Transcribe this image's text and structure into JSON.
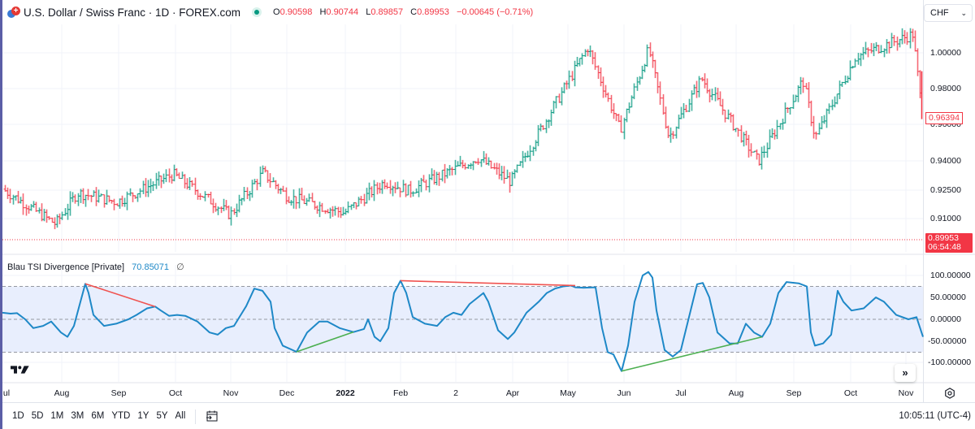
{
  "header": {
    "symbol_title": "U.S. Dollar / Swiss Franc · 1D · FOREX.com",
    "status": "market-open",
    "ohlc": {
      "o_label": "O",
      "o": "0.90598",
      "h_label": "H",
      "h": "0.90744",
      "l_label": "L",
      "l": "0.89857",
      "c_label": "C",
      "c": "0.89953",
      "change": "−0.00645 (−0.71%)"
    },
    "currency": "CHF"
  },
  "price_axis": {
    "labels": [
      "1.00000",
      "0.98000",
      "0.96000",
      "0.94000",
      "0.92500",
      "0.91000"
    ],
    "current_tag": "0.96394",
    "last_price": "0.89953",
    "countdown": "06:54:48"
  },
  "indicator": {
    "name": "Blau TSI Divergence [Private]",
    "value": "70.85071",
    "hide_icon": "∅",
    "axis_labels": [
      "100.00000",
      "50.00000",
      "0.00000",
      "-50.00000",
      "-100.00000"
    ]
  },
  "time_axis": {
    "labels": [
      "ul",
      "Aug",
      "Sep",
      "Oct",
      "Nov",
      "Dec",
      "2022",
      "Feb",
      "2",
      "Apr",
      "May",
      "Jun",
      "Jul",
      "Aug",
      "Sep",
      "Oct",
      "Nov"
    ]
  },
  "bottom_bar": {
    "ranges": [
      "1D",
      "5D",
      "1M",
      "3M",
      "6M",
      "YTD",
      "1Y",
      "5Y",
      "All"
    ],
    "clock": "10:05:11 (UTC-4)"
  },
  "icons": {
    "scroll_right": "»"
  },
  "colors": {
    "up": "#089981",
    "down": "#f23645",
    "tsi_line": "#1e88c7",
    "band_fill": "#e8eefd",
    "bear_div": "#f05350",
    "bull_div": "#4caf50"
  },
  "chart_data": [
    {
      "type": "ohlc",
      "title": "U.S. Dollar / Swiss Franc · 1D · FOREX.com",
      "x_range": [
        "Jul 2021",
        "Nov 2022"
      ],
      "ylabel": "CHF",
      "ylim": [
        0.893,
        1.012
      ],
      "y_ticks": [
        0.91,
        0.925,
        0.94,
        0.96,
        0.98,
        1.0
      ],
      "approx_path": [
        {
          "date": "Jul 2021",
          "close": 0.926
        },
        {
          "date": "Aug 2021",
          "close": 0.907
        },
        {
          "date": "Aug 2021 (mid)",
          "close": 0.924
        },
        {
          "date": "Sep 2021",
          "close": 0.919
        },
        {
          "date": "Oct 2021",
          "close": 0.934
        },
        {
          "date": "Nov 2021",
          "close": 0.912
        },
        {
          "date": "Nov 2021 (late)",
          "close": 0.935
        },
        {
          "date": "Dec 2021",
          "close": 0.922
        },
        {
          "date": "Jan 2022",
          "close": 0.913
        },
        {
          "date": "Jan 2022 (late)",
          "close": 0.93
        },
        {
          "date": "Feb 2022",
          "close": 0.925
        },
        {
          "date": "Mar 2022",
          "close": 0.943
        },
        {
          "date": "Apr 2022",
          "close": 0.93
        },
        {
          "date": "May 2022",
          "close": 1.003
        },
        {
          "date": "May 2022 (late)",
          "close": 0.958
        },
        {
          "date": "Jun 2022",
          "close": 1.002
        },
        {
          "date": "Jun 2022 (late)",
          "close": 0.954
        },
        {
          "date": "Jul 2022",
          "close": 0.986
        },
        {
          "date": "Aug 2022",
          "close": 0.941
        },
        {
          "date": "Sep 2022",
          "close": 0.985
        },
        {
          "date": "Sep 2022 (late)",
          "close": 0.954
        },
        {
          "date": "Oct 2022",
          "close": 0.998
        },
        {
          "date": "Nov 2022",
          "close": 1.01
        },
        {
          "date": "Nov 2022 (last)",
          "close": 0.964
        }
      ],
      "last_close": 0.89953,
      "current_marker": 0.96394
    },
    {
      "type": "line",
      "title": "Blau TSI Divergence [Private]",
      "current_value": 70.85071,
      "ylim": [
        -110,
        110
      ],
      "y_ticks": [
        -100,
        -50,
        0,
        50,
        100
      ],
      "band": {
        "upper": 75,
        "middle": 0,
        "lower": -75
      },
      "divergence_lines": [
        {
          "kind": "bearish",
          "from": {
            "date": "Aug 2021",
            "value": 81
          },
          "to": {
            "date": "Sep 2021",
            "value": 29
          }
        },
        {
          "kind": "bullish",
          "from": {
            "date": "Dec 2021",
            "value": -74
          },
          "to": {
            "date": "Jan 2022",
            "value": -29
          }
        },
        {
          "kind": "bearish",
          "from": {
            "date": "Feb 2022",
            "value": 88
          },
          "to": {
            "date": "May 2022",
            "value": 77
          }
        },
        {
          "kind": "bullish",
          "from": {
            "date": "Jun 2022",
            "value": -118
          },
          "to": {
            "date": "Aug 2022",
            "value": -40
          }
        }
      ]
    }
  ]
}
